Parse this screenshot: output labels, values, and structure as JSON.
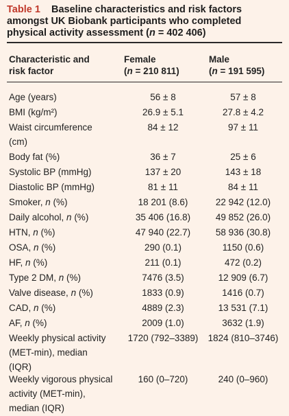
{
  "caption": {
    "label": "Table 1",
    "title_a": "Baseline characteristics and risk factors amongst UK Biobank participants who completed physical activity assessment (",
    "n_italic": "n",
    "title_b": " = 402 406)"
  },
  "header": {
    "col1_line1": "Characteristic and",
    "col1_line2": "risk factor",
    "female_label": "Female",
    "female_n_open": "(",
    "female_n_italic": "n",
    "female_n_rest": " = 210 811)",
    "male_label": "Male",
    "male_n_open": "(",
    "male_n_italic": "n",
    "male_n_rest": " = 191 595)"
  },
  "rows": [
    {
      "line1": "Age (years)",
      "female": "56 ± 8",
      "male": "57 ± 8"
    },
    {
      "line1": "BMI (kg/m²)",
      "female": "26.9 ± 5.1",
      "male": "27.8 ± 4.2"
    },
    {
      "line1": "Waist circumference",
      "line2": "(cm)",
      "female": "84 ± 12",
      "male": "97 ± 11"
    },
    {
      "line1": "Body fat (%)",
      "female": "36 ± 7",
      "male": "25 ± 6"
    },
    {
      "line1": "Systolic BP (mmHg)",
      "female": "137 ± 20",
      "male": "143 ± 18"
    },
    {
      "line1": "Diastolic BP (mmHg)",
      "female": "81 ± 11",
      "male": "84 ± 11"
    },
    {
      "pre": "Smoker, ",
      "ital": "n",
      "post": " (%)",
      "female": "18 201 (8.6)",
      "male": "22 942 (12.0)"
    },
    {
      "pre": "Daily alcohol, ",
      "ital": "n",
      "post": " (%)",
      "female": "35 406 (16.8)",
      "male": "49 852 (26.0)"
    },
    {
      "pre": "HTN, ",
      "ital": "n",
      "post": " (%)",
      "female": "47 940 (22.7)",
      "male": "58 936 (30.8)"
    },
    {
      "pre": "OSA, ",
      "ital": "n",
      "post": " (%)",
      "female": "290 (0.1)",
      "male": "1150 (0.6)"
    },
    {
      "pre": "HF, ",
      "ital": "n",
      "post": " (%)",
      "female": "211 (0.1)",
      "male": "472 (0.2)"
    },
    {
      "pre": "Type 2 DM, ",
      "ital": "n",
      "post": " (%)",
      "female": "7476 (3.5)",
      "male": "12 909 (6.7)"
    },
    {
      "pre": "Valve disease, ",
      "ital": "n",
      "post": " (%)",
      "female": "1833 (0.9)",
      "male": "1416 (0.7)"
    },
    {
      "pre": "CAD, ",
      "ital": "n",
      "post": " (%)",
      "female": "4889 (2.3)",
      "male": "13 531 (7.1)"
    },
    {
      "pre": "AF, ",
      "ital": "n",
      "post": " (%)",
      "female": "2009 (1.0)",
      "male": "3632 (1.9)"
    },
    {
      "line1": "Weekly physical activity",
      "line2": "(MET-min), median",
      "line3": "(IQR)",
      "female": "1720 (792–3389)",
      "male": "1824 (810–3746)"
    },
    {
      "line1": "Weekly vigorous physical",
      "line2": "activity (MET-min),",
      "line3": "median (IQR)",
      "female": "160 (0–720)",
      "male": "240 (0–960)"
    }
  ]
}
